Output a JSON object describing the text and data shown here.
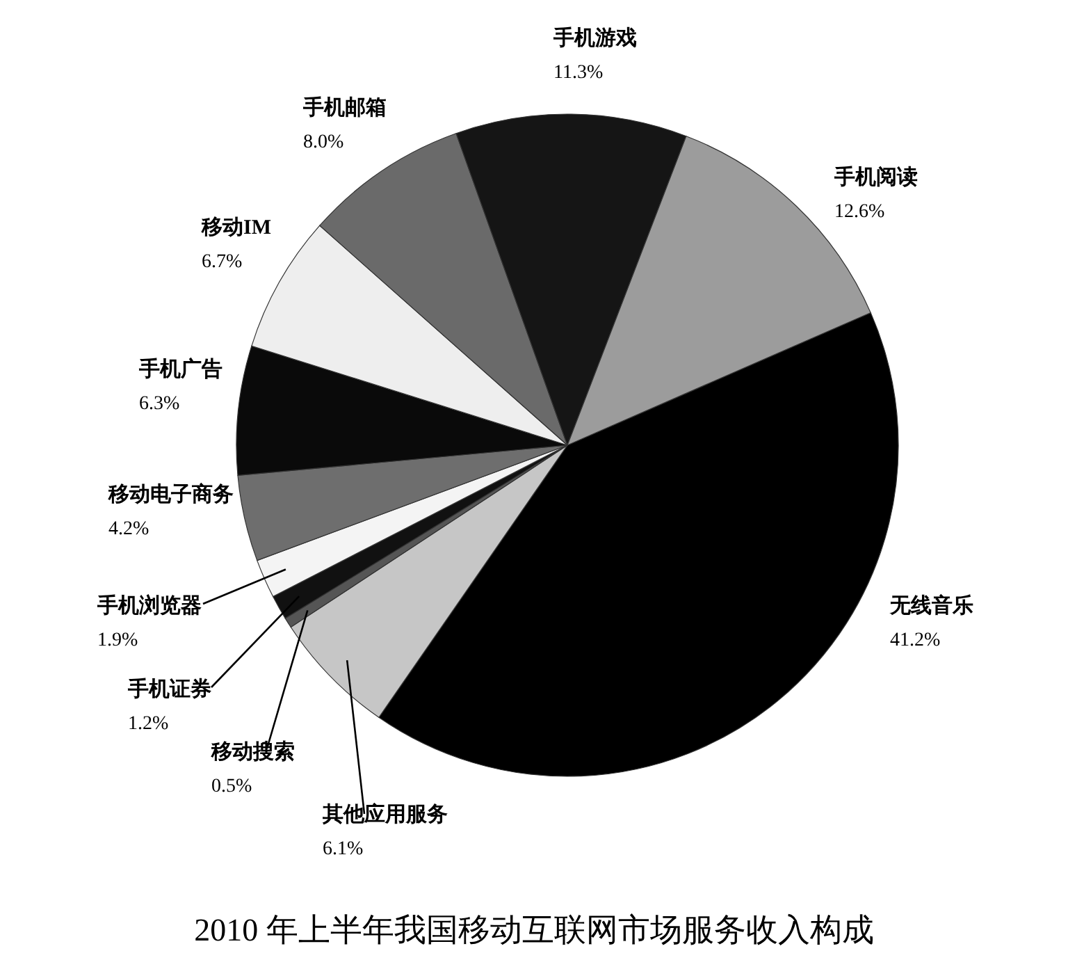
{
  "chart_data": {
    "type": "pie",
    "title": "2010 年上半年我国移动互联网市场服务收入构成",
    "categories": [
      "无线音乐",
      "其他应用服务",
      "移动搜索",
      "手机证券",
      "手机浏览器",
      "移动电子商务",
      "手机广告",
      "移动IM",
      "手机邮箱",
      "手机游戏",
      "手机阅读"
    ],
    "values": [
      41.2,
      6.1,
      0.5,
      1.2,
      1.9,
      4.2,
      6.3,
      6.7,
      8.0,
      11.3,
      12.6
    ],
    "value_labels": [
      "41.2%",
      "6.1%",
      "0.5%",
      "1.2%",
      "1.9%",
      "4.2%",
      "6.3%",
      "6.7%",
      "8.0%",
      "11.3%",
      "12.6%"
    ],
    "colors": [
      "#000000",
      "#c6c6c6",
      "#555555",
      "#111111",
      "#f4f4f4",
      "#6e6e6e",
      "#0a0a0a",
      "#eeeeee",
      "#6a6a6a",
      "#151515",
      "#9c9c9c"
    ],
    "legend": false
  }
}
